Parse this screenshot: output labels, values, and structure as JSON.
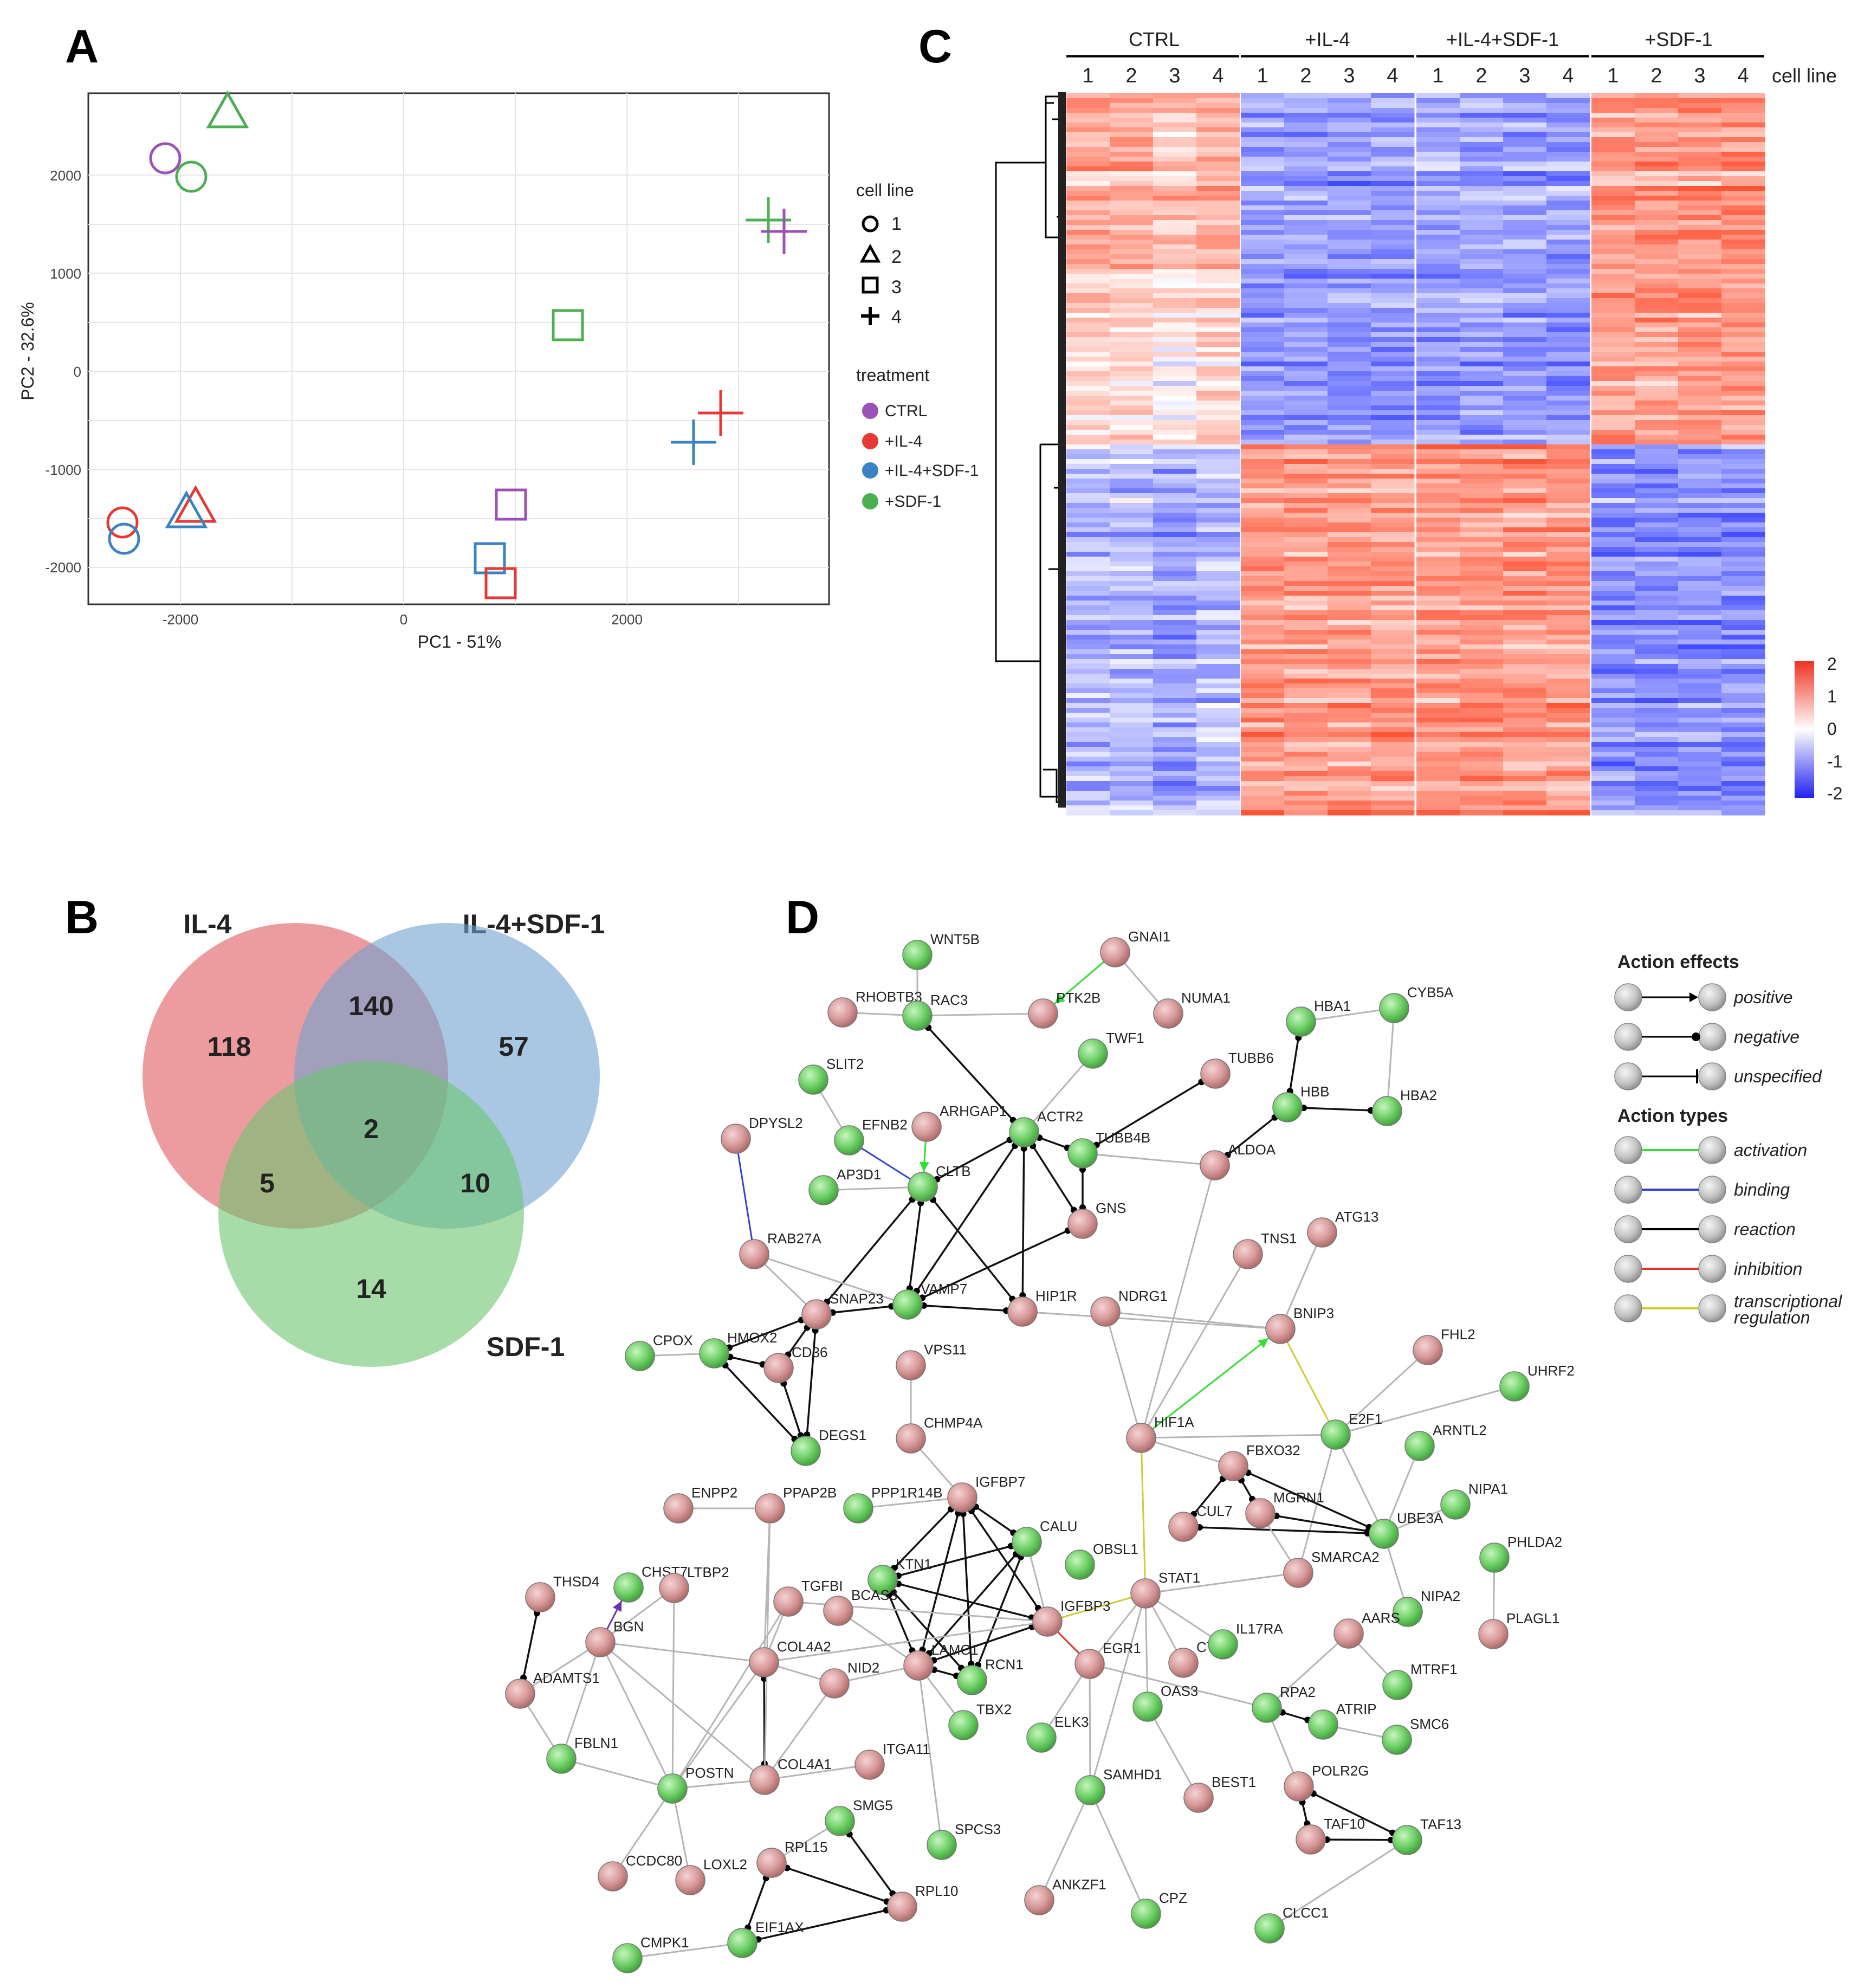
{
  "panels": {
    "A": {
      "letter": "A",
      "xlabel": "PC1 - 51%",
      "ylabel": "PC2 - 32.6%",
      "x_ticks": [
        "-2000",
        "0",
        "2000"
      ],
      "y_ticks": [
        "2000",
        "1000",
        "0",
        "-1000",
        "-2000"
      ],
      "legend_shape_title": "cell line",
      "legend_shapes": [
        {
          "label": "1",
          "shape": "circle"
        },
        {
          "label": "2",
          "shape": "triangle"
        },
        {
          "label": "3",
          "shape": "square"
        },
        {
          "label": "4",
          "shape": "plus"
        }
      ],
      "legend_treat_title": "treatment",
      "legend_treatments": [
        {
          "label": "CTRL",
          "color": "#9b51b7"
        },
        {
          "label": "+IL-4",
          "color": "#e53935"
        },
        {
          "label": "+IL-4+SDF-1",
          "color": "#3b82c4"
        },
        {
          "label": "+SDF-1",
          "color": "#4caf50"
        }
      ]
    },
    "B": {
      "letter": "B",
      "set_labels": {
        "a": "IL-4",
        "b": "IL-4+SDF-1",
        "c": "SDF-1"
      },
      "colors": {
        "a": "#e05a5f",
        "b": "#6fa2cf",
        "c": "#6cc46f"
      },
      "counts": {
        "a_only": "118",
        "ab": "140",
        "b_only": "57",
        "abc": "2",
        "ac": "5",
        "bc": "10",
        "c_only": "14"
      }
    },
    "C": {
      "letter": "C",
      "groups": [
        "CTRL",
        "+IL-4",
        "+IL-4+SDF-1",
        "+SDF-1"
      ],
      "cell_lines": [
        "1",
        "2",
        "3",
        "4"
      ],
      "cell_line_label": "cell line",
      "colorbar_ticks": [
        "2",
        "1",
        "0",
        "-1",
        "-2"
      ]
    },
    "D": {
      "letter": "D",
      "legend_effects_title": "Action effects",
      "legend_effects": [
        "positive",
        "negative",
        "unspecified"
      ],
      "legend_types_title": "Action types",
      "legend_types": [
        {
          "label": "activation",
          "color": "#33dd33"
        },
        {
          "label": "binding",
          "color": "#3344cc"
        },
        {
          "label": "reaction",
          "color": "#000000"
        },
        {
          "label": "inhibition",
          "color": "#dd3333"
        },
        {
          "label": "transcriptional regulation",
          "color": "#cccc33"
        }
      ],
      "nodes": [
        {
          "name": "WNT5B",
          "color": "green"
        },
        {
          "name": "GNAI1",
          "color": "pink"
        },
        {
          "name": "RHOBTB3",
          "color": "pink"
        },
        {
          "name": "RAC3",
          "color": "green"
        },
        {
          "name": "PTK2B",
          "color": "pink"
        },
        {
          "name": "NUMA1",
          "color": "pink"
        },
        {
          "name": "HBA1",
          "color": "green"
        },
        {
          "name": "CYB5A",
          "color": "green"
        },
        {
          "name": "TWF1",
          "color": "green"
        },
        {
          "name": "SLIT2",
          "color": "green"
        },
        {
          "name": "TUBB6",
          "color": "pink"
        },
        {
          "name": "HBB",
          "color": "green"
        },
        {
          "name": "HBA2",
          "color": "green"
        },
        {
          "name": "ARHGAP1",
          "color": "pink"
        },
        {
          "name": "ACTR2",
          "color": "green"
        },
        {
          "name": "DPYSL2",
          "color": "pink"
        },
        {
          "name": "EFNB2",
          "color": "green"
        },
        {
          "name": "TUBB4B",
          "color": "green"
        },
        {
          "name": "AP3D1",
          "color": "green"
        },
        {
          "name": "CLTB",
          "color": "green"
        },
        {
          "name": "ALDOA",
          "color": "pink"
        },
        {
          "name": "GNS",
          "color": "pink"
        },
        {
          "name": "ATG13",
          "color": "pink"
        },
        {
          "name": "RAB27A",
          "color": "pink"
        },
        {
          "name": "TNS1",
          "color": "pink"
        },
        {
          "name": "SNAP23",
          "color": "pink"
        },
        {
          "name": "VAMP7",
          "color": "green"
        },
        {
          "name": "HIP1R",
          "color": "pink"
        },
        {
          "name": "NDRG1",
          "color": "pink"
        },
        {
          "name": "BNIP3",
          "color": "pink"
        },
        {
          "name": "CPOX",
          "color": "green"
        },
        {
          "name": "HMOX2",
          "color": "green"
        },
        {
          "name": "CD36",
          "color": "pink"
        },
        {
          "name": "VPS11",
          "color": "pink"
        },
        {
          "name": "FHL2",
          "color": "pink"
        },
        {
          "name": "UHRF2",
          "color": "green"
        },
        {
          "name": "CHMP4A",
          "color": "pink"
        },
        {
          "name": "HIF1A",
          "color": "pink"
        },
        {
          "name": "E2F1",
          "color": "green"
        },
        {
          "name": "DEGS1",
          "color": "green"
        },
        {
          "name": "ARNTL2",
          "color": "green"
        },
        {
          "name": "FBXO32",
          "color": "pink"
        },
        {
          "name": "ENPP2",
          "color": "pink"
        },
        {
          "name": "PPAP2B",
          "color": "pink"
        },
        {
          "name": "PPP1R14B",
          "color": "green"
        },
        {
          "name": "IGFBP7",
          "color": "pink"
        },
        {
          "name": "MGRN1",
          "color": "pink"
        },
        {
          "name": "NIPA1",
          "color": "green"
        },
        {
          "name": "CALU",
          "color": "green"
        },
        {
          "name": "CUL7",
          "color": "pink"
        },
        {
          "name": "UBE3A",
          "color": "green"
        },
        {
          "name": "PHLDA2",
          "color": "green"
        },
        {
          "name": "KTN1",
          "color": "green"
        },
        {
          "name": "OBSL1",
          "color": "green"
        },
        {
          "name": "SMARCA2",
          "color": "pink"
        },
        {
          "name": "CHST7",
          "color": "green"
        },
        {
          "name": "THSD4",
          "color": "pink"
        },
        {
          "name": "LTBP2",
          "color": "pink"
        },
        {
          "name": "TGFBI",
          "color": "pink"
        },
        {
          "name": "STAT1",
          "color": "pink"
        },
        {
          "name": "NIPA2",
          "color": "green"
        },
        {
          "name": "PLAGL1",
          "color": "pink"
        },
        {
          "name": "BCAS3",
          "color": "pink"
        },
        {
          "name": "IGFBP3",
          "color": "pink"
        },
        {
          "name": "BGN",
          "color": "pink"
        },
        {
          "name": "COL4A2",
          "color": "pink"
        },
        {
          "name": "LAMC1",
          "color": "pink"
        },
        {
          "name": "EGR1",
          "color": "pink"
        },
        {
          "name": "CTF1",
          "color": "pink"
        },
        {
          "name": "IL17RA",
          "color": "green"
        },
        {
          "name": "AARS",
          "color": "pink"
        },
        {
          "name": "NID2",
          "color": "pink"
        },
        {
          "name": "RCN1",
          "color": "green"
        },
        {
          "name": "ADAMTS1",
          "color": "pink"
        },
        {
          "name": "MTRF1",
          "color": "green"
        },
        {
          "name": "TBX2",
          "color": "green"
        },
        {
          "name": "ELK3",
          "color": "green"
        },
        {
          "name": "OAS3",
          "color": "green"
        },
        {
          "name": "RPA2",
          "color": "green"
        },
        {
          "name": "ATRIP",
          "color": "green"
        },
        {
          "name": "SMC6",
          "color": "green"
        },
        {
          "name": "FBLN1",
          "color": "green"
        },
        {
          "name": "POSTN",
          "color": "green"
        },
        {
          "name": "COL4A1",
          "color": "pink"
        },
        {
          "name": "ITGA11",
          "color": "pink"
        },
        {
          "name": "SAMHD1",
          "color": "green"
        },
        {
          "name": "BEST1",
          "color": "pink"
        },
        {
          "name": "POLR2G",
          "color": "pink"
        },
        {
          "name": "SMG5",
          "color": "green"
        },
        {
          "name": "SPCS3",
          "color": "green"
        },
        {
          "name": "TAF13",
          "color": "green"
        },
        {
          "name": "RPL15",
          "color": "pink"
        },
        {
          "name": "CCDC80",
          "color": "pink"
        },
        {
          "name": "TAF10",
          "color": "pink"
        },
        {
          "name": "LOXL2",
          "color": "pink"
        },
        {
          "name": "RPL10",
          "color": "pink"
        },
        {
          "name": "ANKZF1",
          "color": "pink"
        },
        {
          "name": "CPZ",
          "color": "green"
        },
        {
          "name": "EIF1AX",
          "color": "green"
        },
        {
          "name": "CLCC1",
          "color": "green"
        },
        {
          "name": "CMPK1",
          "color": "green"
        }
      ]
    }
  }
}
